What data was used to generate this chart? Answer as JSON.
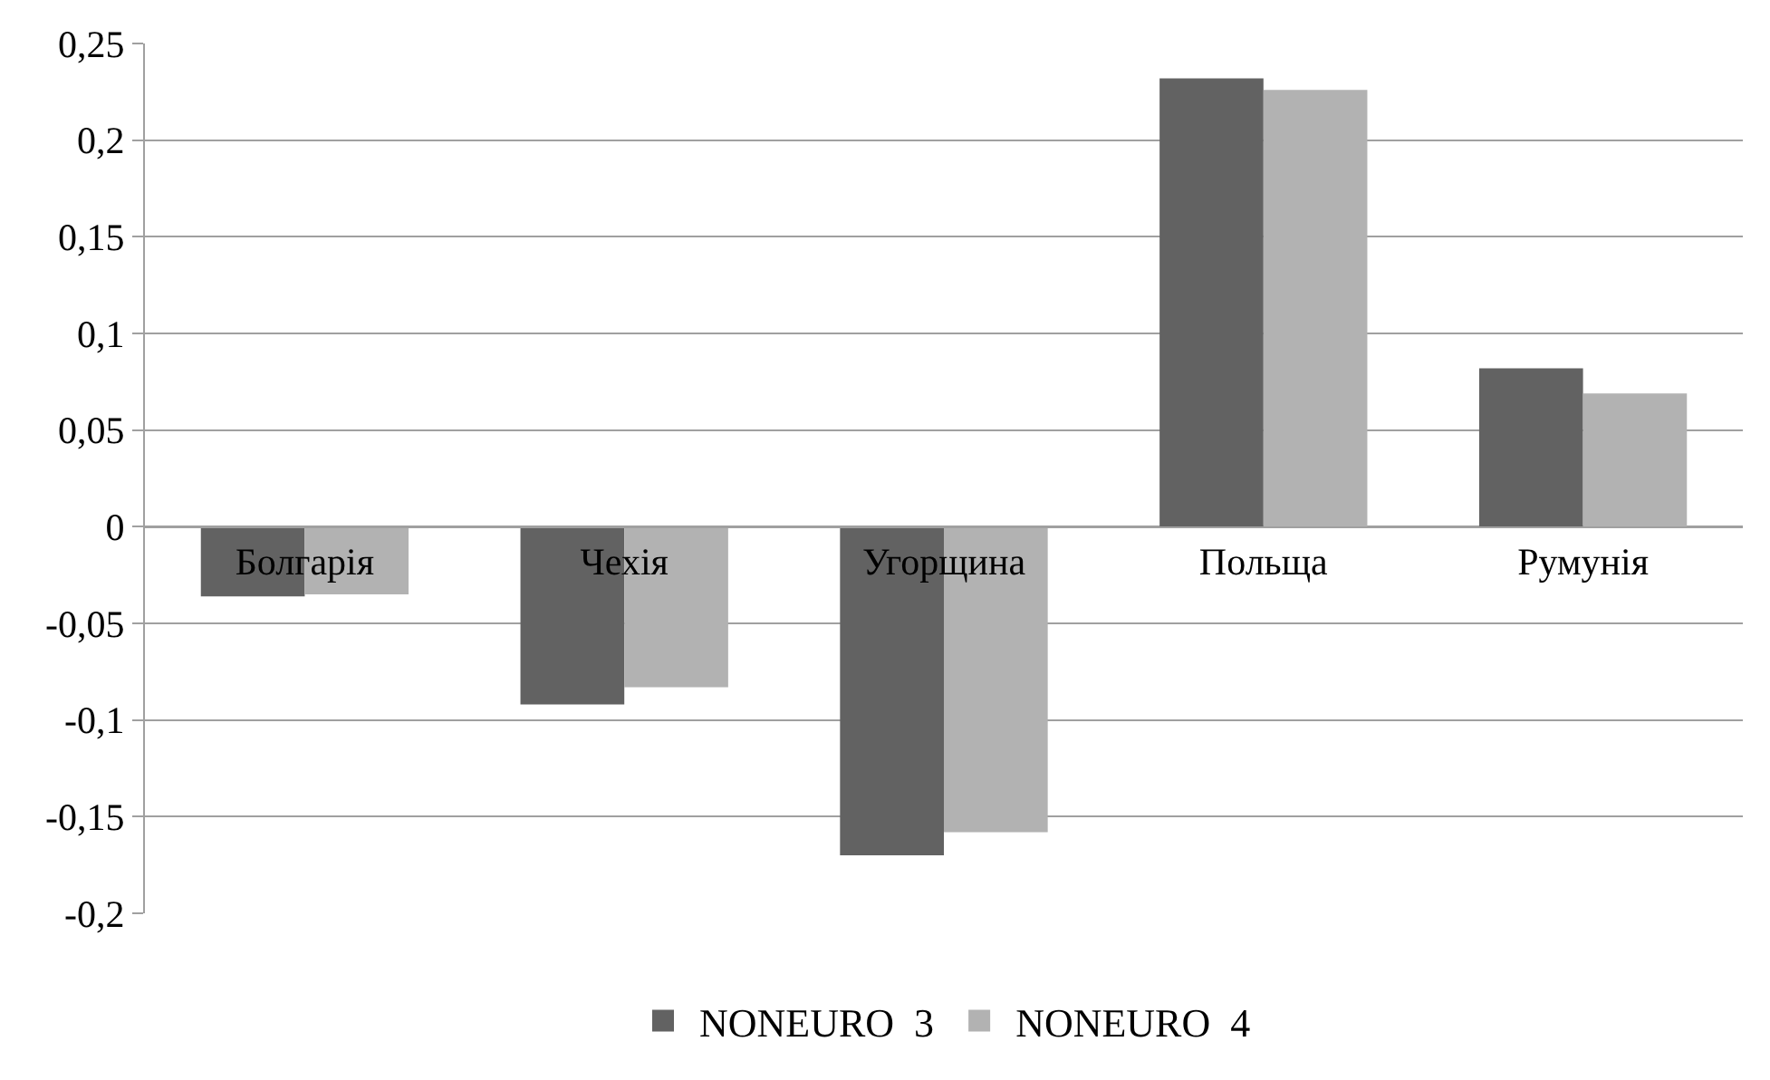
{
  "chart_data": {
    "type": "bar",
    "categories": [
      "Болгарія",
      "Чехія",
      "Угорщина",
      "Польща",
      "Румунія"
    ],
    "series": [
      {
        "name": "NONEURO  3",
        "color": "#626262",
        "values": [
          -0.036,
          -0.092,
          -0.17,
          0.232,
          0.082
        ]
      },
      {
        "name": "NONEURO  4",
        "color": "#b2b2b2",
        "values": [
          -0.035,
          -0.083,
          -0.158,
          0.226,
          0.069
        ]
      }
    ],
    "ylim": [
      -0.2,
      0.25
    ],
    "yticks": [
      {
        "value": -0.2,
        "label": "-0,2"
      },
      {
        "value": -0.15,
        "label": "-0,15"
      },
      {
        "value": -0.1,
        "label": "-0,1"
      },
      {
        "value": -0.05,
        "label": "-0,05"
      },
      0,
      {
        "value": 0.05,
        "label": "0,05"
      },
      {
        "value": 0.1,
        "label": "0,1"
      },
      {
        "value": 0.15,
        "label": "0,15"
      },
      {
        "value": 0.2,
        "label": "0,2"
      },
      {
        "value": 0.25,
        "label": "0,25"
      }
    ],
    "grid": "y",
    "legend": "bottom"
  }
}
